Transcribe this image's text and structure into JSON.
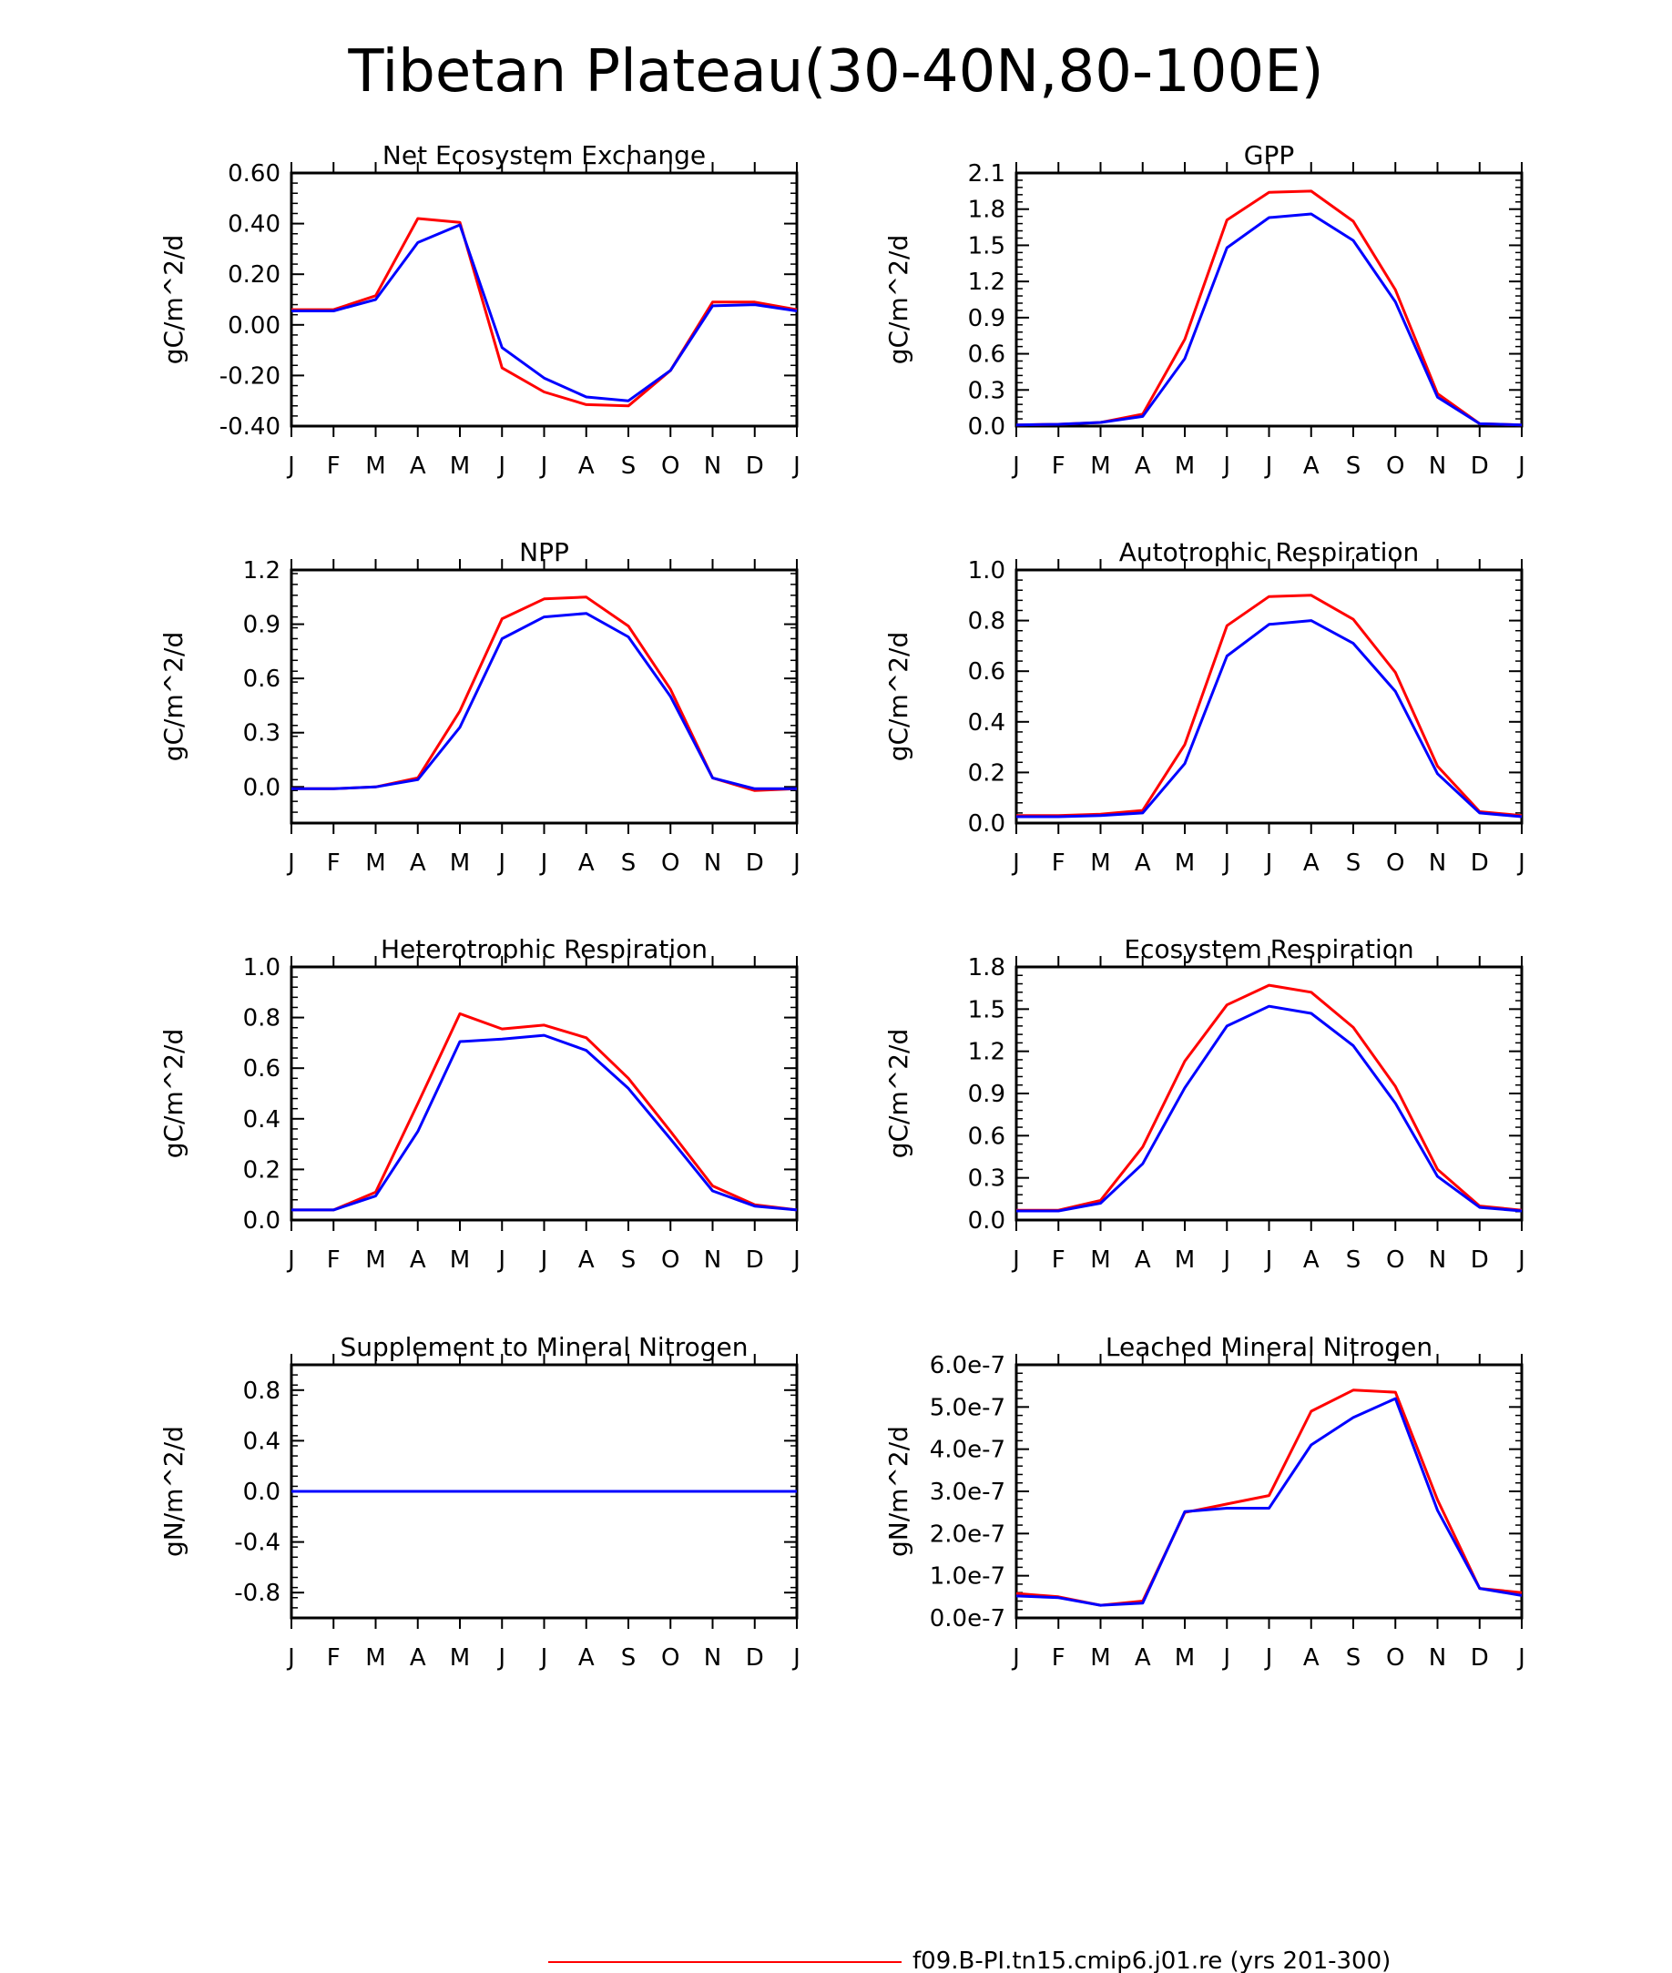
{
  "title": "Tibetan Plateau(30-40N,80-100E)",
  "month_labels": [
    "J",
    "F",
    "M",
    "A",
    "M",
    "J",
    "J",
    "A",
    "S",
    "O",
    "N",
    "D",
    "J"
  ],
  "legend": {
    "entries": [
      {
        "label": "f09.B-PI.tn15.cmip6.j01.re (yrs 201-300)",
        "color": "#ff0000"
      }
    ]
  },
  "chart_data": [
    {
      "type": "line",
      "title": "Net Ecosystem Exchange",
      "ylabel": "gC/m^2/d",
      "ylim": [
        -0.4,
        0.6
      ],
      "yticks": [
        -0.4,
        -0.2,
        0.0,
        0.2,
        0.4,
        0.6
      ],
      "ytick_labels": [
        "-0.40",
        "-0.20",
        "0.00",
        "0.20",
        "0.40",
        "0.60"
      ],
      "x": [
        "J",
        "F",
        "M",
        "A",
        "M",
        "J",
        "J",
        "A",
        "S",
        "O",
        "N",
        "D",
        "J"
      ],
      "series": [
        {
          "color": "#ff0000",
          "values": [
            0.06,
            0.06,
            0.115,
            0.42,
            0.405,
            -0.17,
            -0.265,
            -0.315,
            -0.32,
            -0.18,
            0.09,
            0.09,
            0.06
          ]
        },
        {
          "color": "#0000ff",
          "values": [
            0.055,
            0.055,
            0.1,
            0.325,
            0.395,
            -0.09,
            -0.21,
            -0.285,
            -0.3,
            -0.18,
            0.075,
            0.08,
            0.055
          ]
        }
      ]
    },
    {
      "type": "line",
      "title": "GPP",
      "ylabel": "gC/m^2/d",
      "ylim": [
        0,
        2.1
      ],
      "yticks": [
        0,
        0.3,
        0.6,
        0.9,
        1.2,
        1.5,
        1.8,
        2.1
      ],
      "ytick_labels": [
        "0.0",
        "0.3",
        "0.6",
        "0.9",
        "1.2",
        "1.5",
        "1.8",
        "2.1"
      ],
      "x": [
        "J",
        "F",
        "M",
        "A",
        "M",
        "J",
        "J",
        "A",
        "S",
        "O",
        "N",
        "D",
        "J"
      ],
      "series": [
        {
          "color": "#ff0000",
          "values": [
            0.01,
            0.015,
            0.03,
            0.1,
            0.72,
            1.71,
            1.94,
            1.95,
            1.7,
            1.13,
            0.27,
            0.02,
            0.01
          ]
        },
        {
          "color": "#0000ff",
          "values": [
            0.01,
            0.015,
            0.03,
            0.08,
            0.56,
            1.48,
            1.73,
            1.76,
            1.54,
            1.03,
            0.24,
            0.02,
            0.01
          ]
        }
      ]
    },
    {
      "type": "line",
      "title": "NPP",
      "ylabel": "gC/m^2/d",
      "ylim": [
        -0.2,
        1.2
      ],
      "yticks": [
        0.0,
        0.3,
        0.6,
        0.9,
        1.2
      ],
      "ytick_labels": [
        "0.0",
        "0.3",
        "0.6",
        "0.9",
        "1.2"
      ],
      "x": [
        "J",
        "F",
        "M",
        "A",
        "M",
        "J",
        "J",
        "A",
        "S",
        "O",
        "N",
        "D",
        "J"
      ],
      "series": [
        {
          "color": "#ff0000",
          "values": [
            -0.01,
            -0.01,
            0.0,
            0.05,
            0.42,
            0.93,
            1.04,
            1.05,
            0.89,
            0.54,
            0.05,
            -0.02,
            -0.01
          ]
        },
        {
          "color": "#0000ff",
          "values": [
            -0.01,
            -0.01,
            0.0,
            0.04,
            0.33,
            0.82,
            0.94,
            0.96,
            0.83,
            0.5,
            0.05,
            -0.01,
            -0.01
          ]
        }
      ]
    },
    {
      "type": "line",
      "title": "Autotrophic Respiration",
      "ylabel": "gC/m^2/d",
      "ylim": [
        0,
        1.0
      ],
      "yticks": [
        0.0,
        0.2,
        0.4,
        0.6,
        0.8,
        1.0
      ],
      "ytick_labels": [
        "0.0",
        "0.2",
        "0.4",
        "0.6",
        "0.8",
        "1.0"
      ],
      "x": [
        "J",
        "F",
        "M",
        "A",
        "M",
        "J",
        "J",
        "A",
        "S",
        "O",
        "N",
        "D",
        "J"
      ],
      "series": [
        {
          "color": "#ff0000",
          "values": [
            0.03,
            0.03,
            0.035,
            0.05,
            0.31,
            0.78,
            0.895,
            0.9,
            0.805,
            0.595,
            0.225,
            0.045,
            0.03
          ]
        },
        {
          "color": "#0000ff",
          "values": [
            0.025,
            0.025,
            0.03,
            0.04,
            0.235,
            0.66,
            0.785,
            0.8,
            0.71,
            0.52,
            0.195,
            0.04,
            0.025
          ]
        }
      ]
    },
    {
      "type": "line",
      "title": "Heterotrophic Respiration",
      "ylabel": "gC/m^2/d",
      "ylim": [
        0,
        1.0
      ],
      "yticks": [
        0.0,
        0.2,
        0.4,
        0.6,
        0.8,
        1.0
      ],
      "ytick_labels": [
        "0.0",
        "0.2",
        "0.4",
        "0.6",
        "0.8",
        "1.0"
      ],
      "x": [
        "J",
        "F",
        "M",
        "A",
        "M",
        "J",
        "J",
        "A",
        "S",
        "O",
        "N",
        "D",
        "J"
      ],
      "series": [
        {
          "color": "#ff0000",
          "values": [
            0.04,
            0.04,
            0.11,
            0.46,
            0.815,
            0.755,
            0.77,
            0.72,
            0.56,
            0.35,
            0.135,
            0.06,
            0.04
          ]
        },
        {
          "color": "#0000ff",
          "values": [
            0.04,
            0.04,
            0.095,
            0.35,
            0.705,
            0.715,
            0.73,
            0.67,
            0.52,
            0.32,
            0.115,
            0.055,
            0.04
          ]
        }
      ]
    },
    {
      "type": "line",
      "title": "Ecosystem Respiration",
      "ylabel": "gC/m^2/d",
      "ylim": [
        0,
        1.8
      ],
      "yticks": [
        0.0,
        0.3,
        0.6,
        0.9,
        1.2,
        1.5,
        1.8
      ],
      "ytick_labels": [
        "0.0",
        "0.3",
        "0.6",
        "0.9",
        "1.2",
        "1.5",
        "1.8"
      ],
      "x": [
        "J",
        "F",
        "M",
        "A",
        "M",
        "J",
        "J",
        "A",
        "S",
        "O",
        "N",
        "D",
        "J"
      ],
      "series": [
        {
          "color": "#ff0000",
          "values": [
            0.07,
            0.07,
            0.14,
            0.52,
            1.13,
            1.53,
            1.67,
            1.62,
            1.37,
            0.95,
            0.36,
            0.1,
            0.07
          ]
        },
        {
          "color": "#0000ff",
          "values": [
            0.065,
            0.065,
            0.12,
            0.4,
            0.94,
            1.38,
            1.52,
            1.47,
            1.24,
            0.83,
            0.31,
            0.09,
            0.065
          ]
        }
      ]
    },
    {
      "type": "line",
      "title": "Supplement to Mineral Nitrogen",
      "ylabel": "gN/m^2/d",
      "ylim": [
        -1.0,
        1.0
      ],
      "yticks": [
        -0.8,
        -0.4,
        0.0,
        0.4,
        0.8
      ],
      "ytick_labels": [
        "-0.8",
        "-0.4",
        "0.0",
        "0.4",
        "0.8"
      ],
      "x": [
        "J",
        "F",
        "M",
        "A",
        "M",
        "J",
        "J",
        "A",
        "S",
        "O",
        "N",
        "D",
        "J"
      ],
      "series": [
        {
          "color": "#ff0000",
          "values": [
            0,
            0,
            0,
            0,
            0,
            0,
            0,
            0,
            0,
            0,
            0,
            0,
            0
          ]
        },
        {
          "color": "#0000ff",
          "values": [
            0,
            0,
            0,
            0,
            0,
            0,
            0,
            0,
            0,
            0,
            0,
            0,
            0
          ]
        }
      ]
    },
    {
      "type": "line",
      "title": "Leached Mineral Nitrogen",
      "ylabel": "gN/m^2/d",
      "ylim": [
        0,
        6e-07
      ],
      "yticks": [
        0,
        1e-07,
        2e-07,
        3e-07,
        4e-07,
        5e-07,
        6e-07
      ],
      "ytick_labels": [
        "0.0e-7",
        "1.0e-7",
        "2.0e-7",
        "3.0e-7",
        "4.0e-7",
        "5.0e-7",
        "6.0e-7"
      ],
      "x": [
        "J",
        "F",
        "M",
        "A",
        "M",
        "J",
        "J",
        "A",
        "S",
        "O",
        "N",
        "D",
        "J"
      ],
      "series": [
        {
          "color": "#ff0000",
          "values": [
            5.8e-08,
            5e-08,
            3e-08,
            4e-08,
            2.5e-07,
            2.7e-07,
            2.9e-07,
            4.9e-07,
            5.4e-07,
            5.35e-07,
            2.8e-07,
            7e-08,
            6e-08
          ]
        },
        {
          "color": "#0000ff",
          "values": [
            5.2e-08,
            4.8e-08,
            3e-08,
            3.5e-08,
            2.52e-07,
            2.6e-07,
            2.6e-07,
            4.1e-07,
            4.75e-07,
            5.2e-07,
            2.55e-07,
            7e-08,
            5.3e-08
          ]
        }
      ]
    }
  ]
}
